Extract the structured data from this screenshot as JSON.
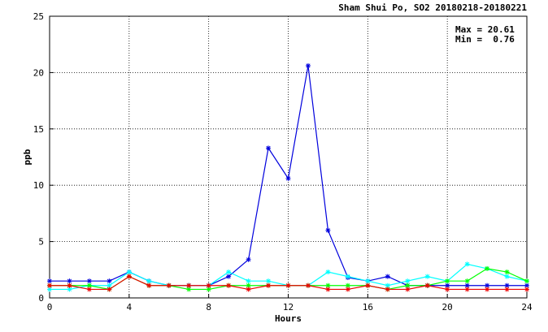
{
  "chart_data": {
    "type": "line",
    "title": "Sham Shui Po, SO2 20180218-20180221",
    "xlabel": "Hours",
    "ylabel": "ppb",
    "xlim": [
      0,
      24
    ],
    "ylim": [
      0,
      25
    ],
    "x_ticks": [
      0,
      4,
      8,
      12,
      16,
      20,
      24
    ],
    "y_ticks": [
      0,
      5,
      10,
      15,
      20,
      25
    ],
    "grid": true,
    "stats": {
      "max_text": "Max = 20.61",
      "min_text": "Min =  0.76"
    },
    "x": [
      0,
      1,
      2,
      3,
      4,
      5,
      6,
      7,
      8,
      9,
      10,
      11,
      12,
      13,
      14,
      15,
      16,
      17,
      18,
      19,
      20,
      21,
      22,
      23,
      24
    ],
    "series": [
      {
        "color": "#0000dd",
        "values": [
          1.5,
          1.5,
          1.5,
          1.5,
          2.3,
          1.5,
          1.1,
          1.1,
          1.1,
          1.9,
          3.4,
          13.3,
          10.6,
          20.61,
          6.0,
          1.8,
          1.5,
          1.9,
          1.1,
          1.1,
          1.1,
          1.1,
          1.1,
          1.1,
          1.1
        ]
      },
      {
        "color": "#00ffff",
        "values": [
          0.76,
          0.76,
          1.1,
          1.1,
          2.3,
          1.5,
          1.1,
          1.1,
          1.1,
          2.3,
          1.5,
          1.5,
          1.1,
          1.1,
          2.3,
          1.9,
          1.5,
          1.1,
          1.5,
          1.9,
          1.5,
          3.0,
          2.6,
          1.9,
          1.5
        ]
      },
      {
        "color": "#00ff00",
        "values": [
          1.1,
          1.1,
          1.1,
          0.76,
          1.9,
          1.1,
          1.1,
          0.76,
          0.76,
          1.1,
          1.1,
          1.1,
          1.1,
          1.1,
          1.1,
          1.1,
          1.1,
          0.76,
          1.1,
          1.1,
          1.5,
          1.5,
          2.6,
          2.3,
          1.5
        ]
      },
      {
        "color": "#ee0000",
        "values": [
          1.1,
          1.1,
          0.76,
          0.76,
          1.9,
          1.1,
          1.1,
          1.1,
          1.1,
          1.1,
          0.76,
          1.1,
          1.1,
          1.1,
          0.76,
          0.76,
          1.1,
          0.76,
          0.76,
          1.1,
          0.76,
          0.76,
          0.76,
          0.76,
          0.76
        ]
      }
    ]
  }
}
